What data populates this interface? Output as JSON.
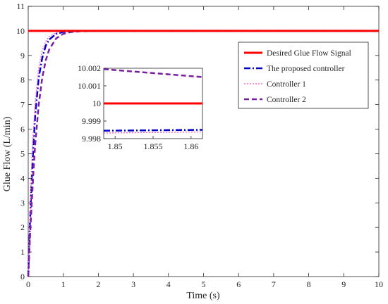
{
  "chart_data": {
    "type": "line",
    "title": "",
    "xlabel": "Time (s)",
    "ylabel": "Glue Flow (L/min)",
    "xlim": [
      0,
      10
    ],
    "ylim": [
      0,
      11
    ],
    "xticks": [
      "0",
      "1",
      "2",
      "3",
      "4",
      "5",
      "6",
      "7",
      "8",
      "9",
      "10"
    ],
    "yticks": [
      "0",
      "1",
      "2",
      "3",
      "4",
      "5",
      "6",
      "7",
      "8",
      "9",
      "10",
      "11"
    ],
    "grid": false,
    "legend_position": "top-right",
    "series": [
      {
        "name": "Desired Glue Flow Signal",
        "color": "#ff0000",
        "style": "solid",
        "x": [
          0,
          10
        ],
        "y": [
          10,
          10
        ]
      },
      {
        "name": "The proposed controller",
        "color": "#0000cc",
        "style": "dashdot",
        "x": [
          0,
          0.05,
          0.1,
          0.15,
          0.2,
          0.3,
          0.4,
          0.5,
          0.6,
          0.8,
          1.0,
          1.2,
          1.5,
          2.0,
          3.0,
          5.0,
          10.0
        ],
        "y": [
          0,
          2.2,
          4.0,
          5.4,
          6.6,
          8.1,
          8.9,
          9.4,
          9.65,
          9.88,
          9.96,
          9.985,
          9.995,
          9.998,
          9.998,
          9.999,
          9.999
        ]
      },
      {
        "name": "Controller 1",
        "color": "#ff66cc",
        "style": "dotted",
        "x": [
          0,
          0.05,
          0.1,
          0.15,
          0.2,
          0.3,
          0.4,
          0.5,
          0.6,
          0.8,
          1.0,
          1.2,
          1.5,
          2.0,
          3.0,
          5.0,
          10.0
        ],
        "y": [
          0,
          2.6,
          4.6,
          6.0,
          7.1,
          8.5,
          9.2,
          9.58,
          9.77,
          9.93,
          9.98,
          9.992,
          9.996,
          9.998,
          9.998,
          9.998,
          9.998
        ]
      },
      {
        "name": "Controller 2",
        "color": "#7a1fa2",
        "style": "dashed",
        "x": [
          0,
          0.05,
          0.1,
          0.15,
          0.2,
          0.3,
          0.4,
          0.5,
          0.6,
          0.8,
          1.0,
          1.2,
          1.5,
          2.0,
          3.0,
          5.0,
          10.0
        ],
        "y": [
          0,
          1.6,
          3.0,
          4.3,
          5.4,
          7.0,
          8.1,
          8.8,
          9.25,
          9.7,
          9.88,
          9.95,
          9.985,
          9.998,
          10.002,
          10.002,
          10.002
        ]
      }
    ],
    "inset": {
      "xlim": [
        1.8485,
        1.8615
      ],
      "ylim": [
        9.998,
        10.002
      ],
      "xticks": [
        "1.85",
        "1.855",
        "1.86"
      ],
      "yticks": [
        "9.998",
        "9.999",
        "10",
        "10.001",
        "10.002"
      ],
      "series": [
        {
          "name": "Desired Glue Flow Signal",
          "x": [
            1.8485,
            1.8615
          ],
          "y": [
            10.0,
            10.0
          ]
        },
        {
          "name": "The proposed controller",
          "x": [
            1.8485,
            1.8615
          ],
          "y": [
            9.99845,
            9.9985
          ]
        },
        {
          "name": "Controller 1",
          "x": [
            1.8485,
            1.8615
          ],
          "y": [
            9.99832,
            9.99838
          ]
        },
        {
          "name": "Controller 2",
          "x": [
            1.8485,
            1.8615
          ],
          "y": [
            10.00195,
            10.0015
          ]
        }
      ]
    }
  }
}
